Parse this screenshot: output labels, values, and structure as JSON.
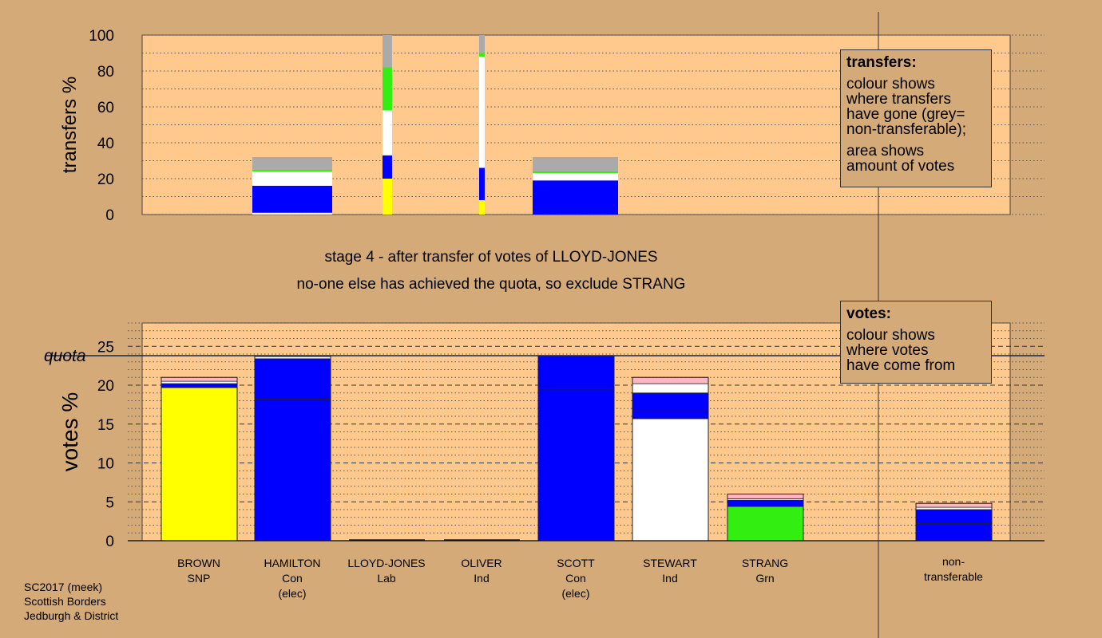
{
  "stage": {
    "line1": "stage 4 - after transfer of votes of LLOYD-JONES",
    "line2": "no-one else has achieved the quota, so exclude STRANG"
  },
  "transfers_box": {
    "title": "transfers:",
    "lines": [
      "colour shows",
      "where transfers",
      "have gone (grey=",
      "non-transferable);"
    ],
    "lines2": [
      "area shows",
      "amount of votes"
    ]
  },
  "votes_box": {
    "title": "votes:",
    "lines": [
      "colour shows",
      "where votes",
      "have come from"
    ]
  },
  "footer": [
    "SC2017 (meek)",
    "Scottish Borders",
    "Jedburgh & District"
  ],
  "colors": {
    "background": "#d4aa78",
    "plot": "#ffc98e",
    "SNP": "#ffff00",
    "Con": "#0000ff",
    "Ind": "#ffffff",
    "Grn": "#33ee11",
    "Lab": "#ffb6c1",
    "nontransferable": "#aaaaaa"
  },
  "chart_data": [
    {
      "type": "bar",
      "title": "transfers",
      "ylabel": "transfers %",
      "ylim": [
        0,
        100
      ],
      "yticks": [
        0,
        20,
        40,
        60,
        80,
        100
      ],
      "bars": [
        {
          "candidate": "HAMILTON",
          "stack": [
            {
              "color": "Ind",
              "v": 1
            },
            {
              "color": "Con",
              "v": 15
            },
            {
              "color": "Ind",
              "v": 8
            },
            {
              "color": "Grn",
              "v": 1
            },
            {
              "color": "nontransferable",
              "v": 7
            }
          ]
        },
        {
          "candidate": "LLOYD-JONES",
          "stack": [
            {
              "color": "SNP",
              "v": 20
            },
            {
              "color": "Con",
              "v": 13
            },
            {
              "color": "Ind",
              "v": 25
            },
            {
              "color": "Grn",
              "v": 24
            },
            {
              "color": "nontransferable",
              "v": 18
            }
          ]
        },
        {
          "candidate": "OLIVER",
          "stack": [
            {
              "color": "SNP",
              "v": 8
            },
            {
              "color": "Con",
              "v": 18
            },
            {
              "color": "Ind",
              "v": 62
            },
            {
              "color": "Grn",
              "v": 2
            },
            {
              "color": "nontransferable",
              "v": 10
            }
          ]
        },
        {
          "candidate": "SCOTT",
          "stack": [
            {
              "color": "Con",
              "v": 19
            },
            {
              "color": "Ind",
              "v": 4
            },
            {
              "color": "Grn",
              "v": 1
            },
            {
              "color": "nontransferable",
              "v": 8
            }
          ]
        }
      ]
    },
    {
      "type": "bar",
      "title": "votes",
      "ylabel": "votes %",
      "ylim": [
        0,
        28
      ],
      "yticks": [
        0,
        5,
        10,
        15,
        20,
        25
      ],
      "quota": 23.8,
      "quota_label": "quota",
      "categories": [
        {
          "name": "BROWN",
          "party": "SNP",
          "note": ""
        },
        {
          "name": "HAMILTON",
          "party": "Con",
          "note": "(elec)"
        },
        {
          "name": "LLOYD-JONES",
          "party": "Lab",
          "note": ""
        },
        {
          "name": "OLIVER",
          "party": "Ind",
          "note": ""
        },
        {
          "name": "SCOTT",
          "party": "Con",
          "note": "(elec)"
        },
        {
          "name": "STEWART",
          "party": "Ind",
          "note": ""
        },
        {
          "name": "STRANG",
          "party": "Grn",
          "note": ""
        }
      ],
      "nontransferable_label": [
        "non-",
        "transferable"
      ],
      "bars": [
        {
          "candidate": "BROWN",
          "stack": [
            {
              "color": "SNP",
              "v": 19.7
            },
            {
              "color": "Con",
              "v": 0.5
            },
            {
              "color": "Ind",
              "v": 0.3
            },
            {
              "color": "Lab",
              "v": 0.5
            }
          ]
        },
        {
          "candidate": "HAMILTON",
          "stack": [
            {
              "color": "Con",
              "v": 18.2
            },
            {
              "color": "Con",
              "v": 5.2
            },
            {
              "color": "Ind",
              "v": 0.3
            }
          ]
        },
        {
          "candidate": "LLOYD-JONES",
          "stack": []
        },
        {
          "candidate": "OLIVER",
          "stack": []
        },
        {
          "candidate": "SCOTT",
          "stack": [
            {
              "color": "Con",
              "v": 19.5
            },
            {
              "color": "Con",
              "v": 4.3
            }
          ]
        },
        {
          "candidate": "STEWART",
          "stack": [
            {
              "color": "Ind",
              "v": 15.7
            },
            {
              "color": "Con",
              "v": 1.0
            },
            {
              "color": "Con",
              "v": 2.3
            },
            {
              "color": "Ind",
              "v": 1.2
            },
            {
              "color": "Lab",
              "v": 0.8
            }
          ]
        },
        {
          "candidate": "STRANG",
          "stack": [
            {
              "color": "Grn",
              "v": 4.4
            },
            {
              "color": "Con",
              "v": 0.8
            },
            {
              "color": "Ind",
              "v": 0.2
            },
            {
              "color": "Lab",
              "v": 0.6
            }
          ]
        },
        {
          "candidate": "non-transferable",
          "stack": [
            {
              "color": "Con",
              "v": 2.2
            },
            {
              "color": "Con",
              "v": 1.8
            },
            {
              "color": "Ind",
              "v": 0.3
            },
            {
              "color": "Lab",
              "v": 0.5
            }
          ]
        }
      ]
    }
  ]
}
